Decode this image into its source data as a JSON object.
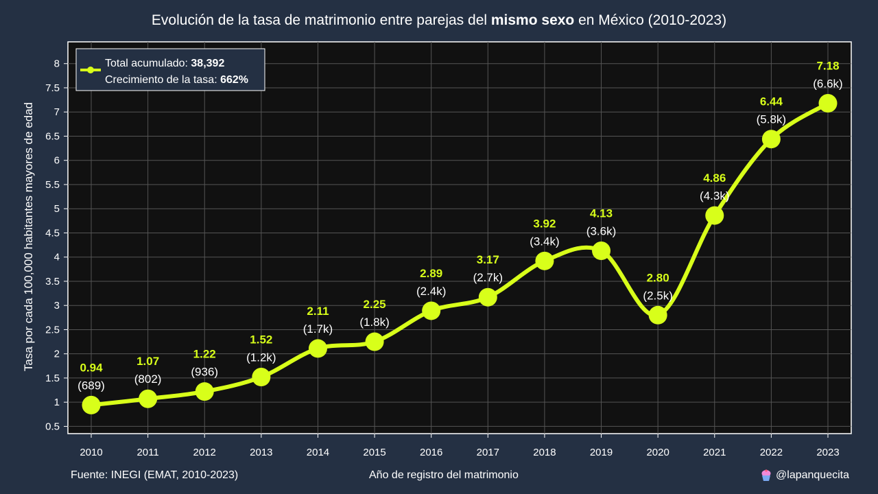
{
  "title": {
    "part1": "Evolución de la tasa de matrimonio entre parejas del ",
    "bold": "mismo sexo",
    "part2": " en México (2010-2023)"
  },
  "footer": {
    "source": "Fuente: INEGI (EMAT, 2010-2023)",
    "handle": "@lapanquecita"
  },
  "legend": {
    "line1_label": "Total acumulado: ",
    "line1_value": "38,392",
    "line2_label": "Crecimiento de la tasa: ",
    "line2_value": "662%"
  },
  "colors": {
    "background": "#243043",
    "plot_bg": "#111111",
    "line": "#d8ff1a",
    "grid": "#555555"
  },
  "chart_data": {
    "type": "line",
    "xlabel": "Año de registro del matrimonio",
    "ylabel": "Tasa por cada 100,000 habitantes mayores de edad",
    "ylim": [
      0.35,
      8.45
    ],
    "yticks": [
      "0.5",
      "1",
      "1.5",
      "2",
      "2.5",
      "3",
      "3.5",
      "4",
      "4.5",
      "5",
      "5.5",
      "6",
      "6.5",
      "7",
      "7.5",
      "8"
    ],
    "grid": true,
    "legend_position": "top-left",
    "x": [
      "2010",
      "2011",
      "2012",
      "2013",
      "2014",
      "2015",
      "2016",
      "2017",
      "2018",
      "2019",
      "2020",
      "2021",
      "2022",
      "2023"
    ],
    "values": [
      0.94,
      1.07,
      1.22,
      1.52,
      2.11,
      2.25,
      2.89,
      3.17,
      3.92,
      4.13,
      2.8,
      4.86,
      6.44,
      7.18
    ],
    "value_labels": [
      "0.94",
      "1.07",
      "1.22",
      "1.52",
      "2.11",
      "2.25",
      "2.89",
      "3.17",
      "3.92",
      "4.13",
      "2.80",
      "4.86",
      "6.44",
      "7.18"
    ],
    "count_labels": [
      "(689)",
      "(802)",
      "(936)",
      "(1.2k)",
      "(1.7k)",
      "(1.8k)",
      "(2.4k)",
      "(2.7k)",
      "(3.4k)",
      "(3.6k)",
      "(2.5k)",
      "(4.3k)",
      "(5.8k)",
      "(6.6k)"
    ]
  }
}
